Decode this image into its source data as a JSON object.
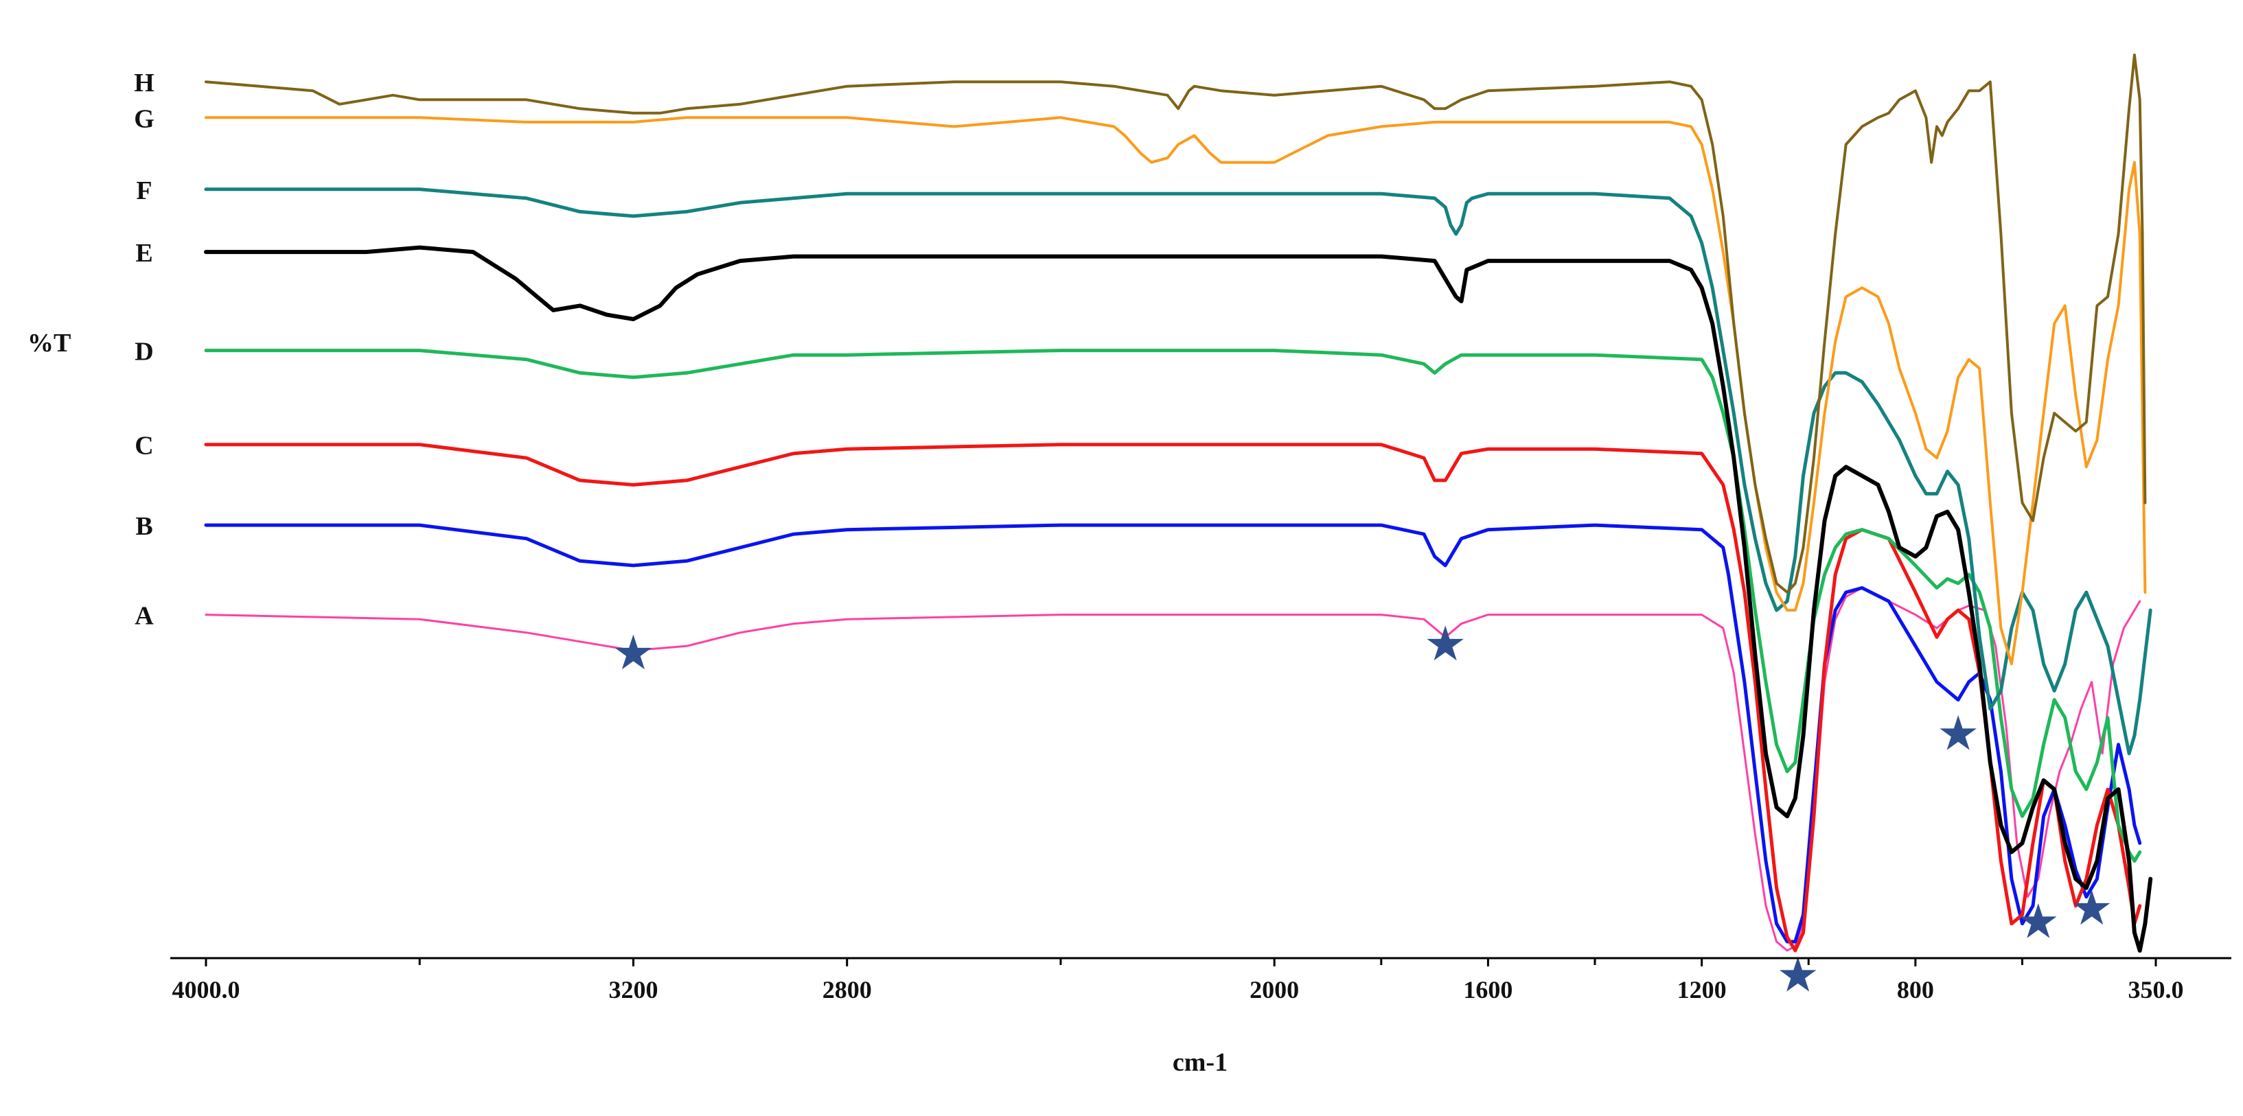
{
  "chart_data": {
    "type": "line",
    "title": "",
    "xlabel": "cm-1",
    "ylabel": "%T",
    "xlim": [
      4000.0,
      350.0
    ],
    "ylim": [
      0,
      100
    ],
    "x_reversed": true,
    "grid": false,
    "legend": "none",
    "x_tick_labels": [
      {
        "value": 4000.0,
        "label": "4000.0"
      },
      {
        "value": 3200,
        "label": "3200"
      },
      {
        "value": 2800,
        "label": "2800"
      },
      {
        "value": 2000,
        "label": "2000"
      },
      {
        "value": 1600,
        "label": "1600"
      },
      {
        "value": 1200,
        "label": "1200"
      },
      {
        "value": 800,
        "label": "800"
      },
      {
        "value": 350.0,
        "label": "350.0"
      }
    ],
    "x_minor_ticks": [
      3600,
      2400,
      1800,
      1400,
      1000,
      600
    ],
    "markers": [
      {
        "symbol": "★",
        "x": 3200,
        "y": 33
      },
      {
        "symbol": "★",
        "x": 1680,
        "y": 34
      },
      {
        "symbol": "★",
        "x": 1020,
        "y": -3
      },
      {
        "symbol": "★",
        "x": 720,
        "y": 24
      },
      {
        "symbol": "★",
        "x": 570,
        "y": 3
      },
      {
        "symbol": "★",
        "x": 470,
        "y": 4.5
      }
    ],
    "series": [
      {
        "name": "A",
        "label": "A",
        "color": "#ff3fa4",
        "width": 3,
        "x": [
          4000,
          3600,
          3400,
          3250,
          3200,
          3100,
          3000,
          2900,
          2800,
          2400,
          2000,
          1800,
          1720,
          1700,
          1680,
          1650,
          1600,
          1400,
          1200,
          1160,
          1140,
          1120,
          1100,
          1080,
          1060,
          1040,
          1025,
          1010,
          990,
          970,
          950,
          930,
          900,
          850,
          800,
          760,
          720,
          700,
          670,
          650,
          630,
          610,
          590,
          570,
          550,
          530,
          510,
          490,
          470,
          450,
          430,
          410,
          400,
          390,
          380
        ],
        "y": [
          37.5,
          37,
          35.5,
          34,
          33.5,
          34,
          35.5,
          36.5,
          37,
          37.5,
          37.5,
          37.5,
          37,
          36,
          35,
          36.5,
          37.5,
          37.5,
          37.5,
          36,
          31,
          22,
          13,
          5,
          1,
          0,
          0.5,
          3,
          15,
          30,
          37,
          39.5,
          40.5,
          39,
          37.5,
          36,
          38,
          38.5,
          38,
          34,
          25,
          12,
          6,
          8,
          15,
          20,
          23,
          27,
          30,
          22,
          32,
          36,
          37,
          38,
          39
        ]
      },
      {
        "name": "B",
        "label": "B",
        "color": "#0a14f0",
        "width": 5,
        "x": [
          4000,
          3600,
          3400,
          3300,
          3200,
          3100,
          3000,
          2900,
          2800,
          2400,
          2000,
          1800,
          1720,
          1700,
          1680,
          1650,
          1600,
          1400,
          1200,
          1160,
          1150,
          1140,
          1120,
          1100,
          1080,
          1060,
          1040,
          1025,
          1010,
          990,
          970,
          950,
          930,
          900,
          850,
          800,
          760,
          740,
          720,
          700,
          680,
          660,
          640,
          620,
          600,
          580,
          560,
          540,
          520,
          500,
          480,
          460,
          440,
          420,
          400,
          390,
          380
        ],
        "y": [
          47.5,
          47.5,
          46,
          43.5,
          43,
          43.5,
          45,
          46.5,
          47,
          47.5,
          47.5,
          47.5,
          46.5,
          44,
          43,
          46,
          47,
          47.5,
          47,
          45,
          42,
          38,
          30,
          20,
          10,
          3,
          1,
          1,
          4,
          18,
          32,
          38,
          40,
          40.5,
          39,
          34,
          30,
          29,
          28,
          30,
          31,
          28,
          20,
          8,
          3,
          5,
          15,
          18,
          14,
          9,
          6,
          8,
          16,
          23,
          18,
          14,
          12
        ]
      },
      {
        "name": "C",
        "label": "C",
        "color": "#f21616",
        "width": 5,
        "x": [
          4000,
          3600,
          3400,
          3300,
          3200,
          3100,
          3000,
          2900,
          2800,
          2400,
          2000,
          1800,
          1720,
          1700,
          1680,
          1650,
          1600,
          1400,
          1200,
          1160,
          1140,
          1120,
          1100,
          1080,
          1060,
          1040,
          1025,
          1010,
          990,
          970,
          950,
          930,
          900,
          850,
          800,
          760,
          740,
          720,
          700,
          680,
          660,
          640,
          620,
          600,
          580,
          560,
          540,
          520,
          500,
          480,
          460,
          440,
          420,
          400,
          390,
          380
        ],
        "y": [
          56.5,
          56.5,
          55,
          52.5,
          52,
          52.5,
          54,
          55.5,
          56,
          56.5,
          56.5,
          56.5,
          55,
          52.5,
          52.5,
          55.5,
          56,
          56,
          55.5,
          52,
          47,
          40,
          30,
          18,
          7,
          1.5,
          0,
          2,
          15,
          32,
          42,
          46,
          47,
          46,
          40,
          35,
          37,
          38,
          37,
          31,
          21,
          10,
          3,
          4,
          12,
          19,
          18,
          10,
          5,
          8,
          14,
          18,
          14,
          7,
          3,
          5
        ]
      },
      {
        "name": "D",
        "label": "D",
        "color": "#1fb85a",
        "width": 5,
        "x": [
          4000,
          3600,
          3400,
          3300,
          3200,
          3100,
          3000,
          2900,
          2800,
          2400,
          2000,
          1800,
          1720,
          1700,
          1680,
          1650,
          1600,
          1400,
          1200,
          1180,
          1160,
          1140,
          1120,
          1100,
          1080,
          1060,
          1040,
          1025,
          1010,
          990,
          970,
          950,
          930,
          900,
          850,
          800,
          760,
          740,
          720,
          700,
          680,
          660,
          640,
          620,
          600,
          580,
          560,
          540,
          520,
          500,
          480,
          460,
          440,
          420,
          400,
          390,
          380
        ],
        "y": [
          67,
          67,
          66,
          64.5,
          64,
          64.5,
          65.5,
          66.5,
          66.5,
          67,
          67,
          66.5,
          65.5,
          64.5,
          65.5,
          66.5,
          66.5,
          66.5,
          66,
          64,
          60,
          55,
          47,
          38,
          30,
          23,
          20,
          21,
          28,
          37,
          42,
          45,
          46.5,
          47,
          46,
          43,
          40.5,
          41.5,
          41,
          42,
          40,
          36,
          26,
          18,
          15,
          17,
          23,
          28,
          26,
          20,
          18,
          21,
          26,
          14,
          11,
          10,
          11
        ]
      },
      {
        "name": "E",
        "label": "E",
        "color": "#000000",
        "width": 6,
        "x": [
          4000,
          3700,
          3600,
          3500,
          3420,
          3380,
          3350,
          3300,
          3250,
          3200,
          3150,
          3120,
          3080,
          3000,
          2900,
          2800,
          2400,
          2000,
          1800,
          1700,
          1680,
          1660,
          1650,
          1640,
          1600,
          1400,
          1260,
          1220,
          1200,
          1180,
          1160,
          1140,
          1120,
          1100,
          1080,
          1060,
          1040,
          1025,
          1010,
          990,
          970,
          950,
          930,
          900,
          870,
          850,
          830,
          800,
          780,
          760,
          740,
          720,
          700,
          680,
          660,
          640,
          620,
          600,
          580,
          560,
          540,
          520,
          500,
          480,
          460,
          440,
          420,
          400,
          390,
          380,
          370,
          360
        ],
        "y": [
          78,
          78,
          78.5,
          78,
          75,
          73,
          71.5,
          72,
          71,
          70.5,
          72,
          74,
          75.5,
          77,
          77.5,
          77.5,
          77.5,
          77.5,
          77.5,
          77,
          75,
          73,
          72.5,
          76,
          77,
          77,
          77,
          76,
          74,
          70,
          63,
          55,
          45,
          33,
          22,
          16,
          15,
          17,
          24,
          38,
          48,
          53,
          54,
          53,
          52,
          49,
          45,
          44,
          45,
          48.5,
          49,
          47,
          40,
          32,
          21,
          14,
          11,
          12,
          16,
          19,
          18,
          12,
          8,
          7,
          10,
          17,
          18,
          10,
          2,
          0,
          3,
          8
        ]
      },
      {
        "name": "F",
        "label": "F",
        "color": "#158280",
        "width": 5,
        "x": [
          4000,
          3600,
          3400,
          3300,
          3200,
          3100,
          3000,
          2900,
          2800,
          2400,
          2000,
          1800,
          1700,
          1680,
          1670,
          1660,
          1650,
          1640,
          1630,
          1600,
          1400,
          1260,
          1220,
          1200,
          1180,
          1160,
          1140,
          1120,
          1100,
          1080,
          1060,
          1040,
          1025,
          1010,
          990,
          970,
          950,
          930,
          900,
          870,
          850,
          830,
          800,
          780,
          760,
          740,
          720,
          700,
          680,
          660,
          640,
          620,
          600,
          580,
          560,
          540,
          520,
          500,
          480,
          460,
          440,
          420,
          400,
          390,
          380,
          370,
          360
        ],
        "y": [
          85,
          85,
          84,
          82.5,
          82,
          82.5,
          83.5,
          84,
          84.5,
          84.5,
          84.5,
          84.5,
          84,
          83,
          81,
          80,
          81,
          83.5,
          84,
          84.5,
          84.5,
          84,
          82,
          79,
          74,
          67,
          60,
          52,
          46,
          41,
          38,
          39,
          44,
          53,
          60,
          63,
          64.5,
          64.5,
          63.5,
          61,
          59,
          57,
          53,
          51,
          51,
          53.5,
          52,
          46,
          35,
          27,
          29,
          36,
          40,
          38,
          32,
          29,
          32,
          38,
          40,
          37,
          34,
          28,
          22,
          24,
          28,
          33,
          38
        ]
      },
      {
        "name": "G",
        "label": "G",
        "color": "#fb9c1b",
        "width": 4,
        "x": [
          4000,
          3600,
          3400,
          3300,
          3200,
          3100,
          3000,
          2900,
          2800,
          2600,
          2400,
          2300,
          2280,
          2250,
          2230,
          2200,
          2180,
          2150,
          2120,
          2100,
          2000,
          1900,
          1800,
          1700,
          1600,
          1400,
          1260,
          1220,
          1200,
          1180,
          1160,
          1140,
          1120,
          1100,
          1080,
          1060,
          1040,
          1025,
          1010,
          990,
          970,
          950,
          930,
          900,
          870,
          850,
          830,
          800,
          780,
          760,
          740,
          720,
          700,
          680,
          660,
          640,
          620,
          600,
          580,
          560,
          540,
          520,
          500,
          480,
          460,
          440,
          420,
          400,
          390,
          380,
          375,
          370
        ],
        "y": [
          93,
          93,
          92.5,
          92.5,
          92.5,
          93,
          93,
          93,
          93,
          92,
          93,
          92,
          91,
          89,
          88,
          88.5,
          90,
          91,
          89,
          88,
          88,
          91,
          92,
          92.5,
          92.5,
          92.5,
          92.5,
          92,
          90,
          85,
          78,
          70,
          60,
          52,
          45,
          40,
          38,
          38,
          41,
          50,
          60,
          68,
          73,
          74,
          73,
          70,
          65,
          60,
          56,
          55,
          58,
          64,
          66,
          65,
          50,
          36,
          32,
          40,
          50,
          60,
          70,
          72,
          62,
          54,
          57,
          66,
          72,
          85,
          88,
          80,
          60,
          40
        ]
      },
      {
        "name": "H",
        "label": "H",
        "color": "#7f6418",
        "width": 4,
        "x": [
          4000,
          3800,
          3750,
          3700,
          3650,
          3600,
          3400,
          3300,
          3200,
          3150,
          3100,
          3000,
          2900,
          2800,
          2600,
          2400,
          2300,
          2200,
          2180,
          2160,
          2150,
          2100,
          2000,
          1900,
          1800,
          1720,
          1700,
          1680,
          1650,
          1600,
          1400,
          1260,
          1220,
          1200,
          1180,
          1160,
          1140,
          1120,
          1100,
          1080,
          1060,
          1040,
          1025,
          1010,
          990,
          970,
          950,
          930,
          900,
          870,
          850,
          830,
          800,
          780,
          770,
          760,
          750,
          740,
          720,
          700,
          680,
          660,
          640,
          620,
          600,
          580,
          560,
          540,
          520,
          500,
          480,
          460,
          440,
          420,
          400,
          390,
          380,
          375,
          370
        ],
        "y": [
          97,
          96,
          94.5,
          95,
          95.5,
          95,
          95,
          94,
          93.5,
          93.5,
          94,
          94.5,
          95.5,
          96.5,
          97,
          97,
          96.5,
          95.5,
          94,
          96,
          96.5,
          96,
          95.5,
          96,
          96.5,
          95,
          94,
          94,
          95,
          96,
          96.5,
          97,
          96.5,
          95,
          90,
          82,
          70,
          60,
          52,
          46,
          41,
          40,
          41,
          45,
          55,
          68,
          80,
          90,
          92,
          93,
          93.5,
          95,
          96,
          93,
          88,
          92,
          91,
          92.5,
          94,
          96,
          96,
          97,
          80,
          60,
          50,
          48,
          55,
          60,
          59,
          58,
          59,
          72,
          73,
          80,
          94,
          100,
          95,
          80,
          50
        ]
      }
    ]
  }
}
